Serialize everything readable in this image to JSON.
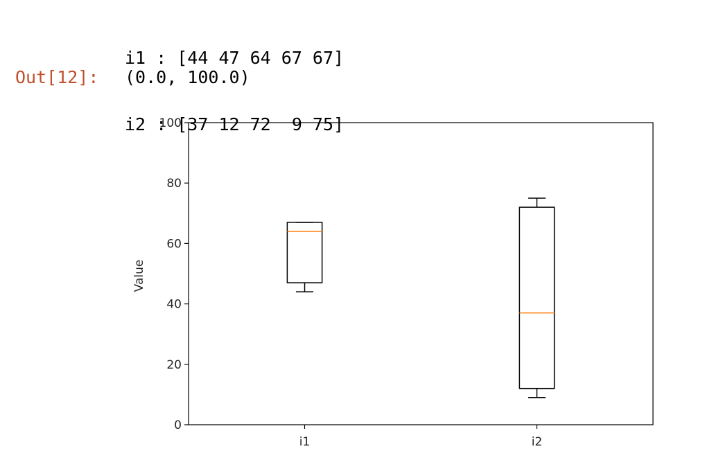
{
  "stdout": {
    "lines": [
      "i1 : [44 47 64 67 67]",
      "i2 : [37 12 72  9 75]"
    ]
  },
  "output": {
    "prompt": "Out[12]:",
    "prompt_color": "#c0502e",
    "result": "(0.0, 100.0)"
  },
  "chart_data": {
    "type": "box",
    "title": "",
    "xlabel": "",
    "ylabel": "Value",
    "ylim": [
      0,
      100
    ],
    "yticks": [
      "0",
      "20",
      "40",
      "60",
      "80",
      "100"
    ],
    "categories": [
      "i1",
      "i2"
    ],
    "boxes": [
      {
        "name": "i1",
        "whisker_low": 44,
        "q1": 47,
        "median": 64,
        "q3": 67,
        "whisker_high": 67
      },
      {
        "name": "i2",
        "whisker_low": 9,
        "q1": 12,
        "median": 37,
        "q3": 72,
        "whisker_high": 75
      }
    ],
    "median_color": "#ff7f0e",
    "box_color": "#000000",
    "grid": false,
    "legend": "none"
  }
}
